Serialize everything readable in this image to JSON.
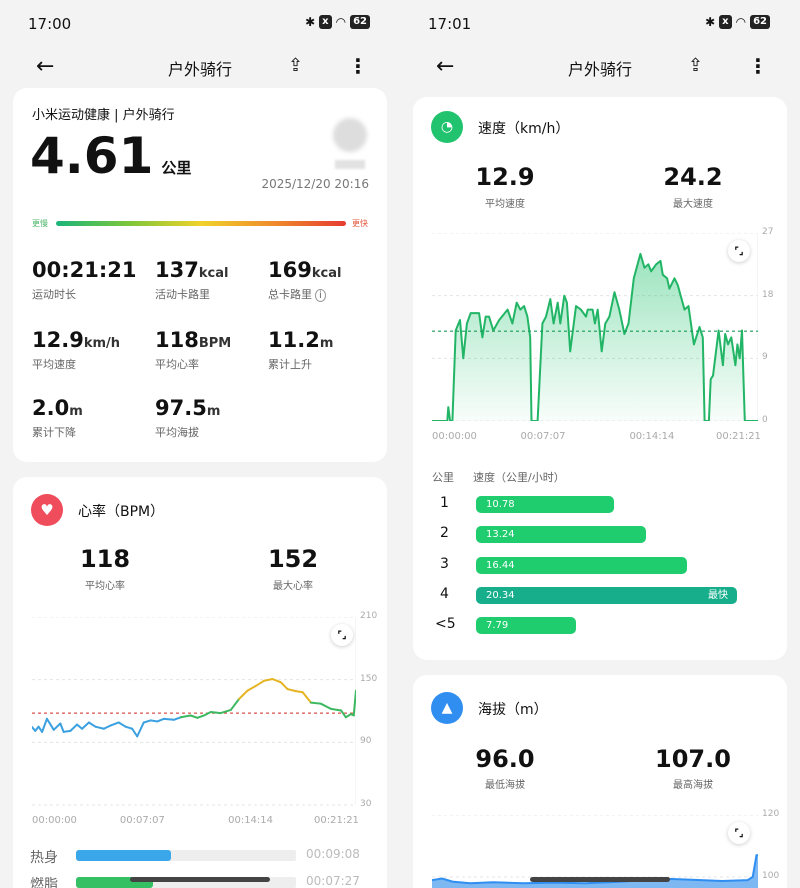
{
  "left": {
    "status": {
      "time": "17:00",
      "battery": "62"
    },
    "nav": {
      "title": "户外骑行"
    },
    "summary": {
      "source": "小米运动健康 | 户外骑行",
      "distance": "4.61",
      "distance_unit": "公里",
      "datetime": "2025/12/20 20:16",
      "scale_slow": "更慢",
      "scale_fast": "更快",
      "stats": [
        {
          "value": "00:21:21",
          "unit": "",
          "label": "运动时长"
        },
        {
          "value": "137",
          "unit": "kcal",
          "label": "活动卡路里"
        },
        {
          "value": "169",
          "unit": "kcal",
          "label": "总卡路里"
        },
        {
          "value": "12.9",
          "unit": "km/h",
          "label": "平均速度"
        },
        {
          "value": "118",
          "unit": "BPM",
          "label": "平均心率"
        },
        {
          "value": "11.2",
          "unit": "m",
          "label": "累计上升"
        },
        {
          "value": "2.0",
          "unit": "m",
          "label": "累计下降"
        },
        {
          "value": "97.5",
          "unit": "m",
          "label": "平均海拔"
        }
      ]
    },
    "heart": {
      "title": "心率（BPM）",
      "avg": "118",
      "avg_label": "平均心率",
      "max": "152",
      "max_label": "最大心率",
      "zones": [
        {
          "label": "热身",
          "time": "00:09:08",
          "fraction": 0.43,
          "color": "#3aa7ea"
        },
        {
          "label": "燃脂",
          "time": "00:07:27",
          "fraction": 0.35,
          "color": "#35c064"
        }
      ]
    }
  },
  "right": {
    "status": {
      "time": "17:01",
      "battery": "62"
    },
    "nav": {
      "title": "户外骑行"
    },
    "speed": {
      "title": "速度（km/h）",
      "avg": "12.9",
      "avg_label": "平均速度",
      "max": "24.2",
      "max_label": "最大速度",
      "table_header_km": "公里",
      "table_header_speed": "速度（公里/小时）",
      "fastest_label": "最快",
      "splits": [
        {
          "km": "1",
          "speed": "10.78",
          "value": 10.78
        },
        {
          "km": "2",
          "speed": "13.24",
          "value": 13.24
        },
        {
          "km": "3",
          "speed": "16.44",
          "value": 16.44
        },
        {
          "km": "4",
          "speed": "20.34",
          "value": 20.34,
          "fastest": true
        },
        {
          "km": "<5",
          "speed": "7.79",
          "value": 7.79
        }
      ]
    },
    "altitude": {
      "title": "海拔（m）",
      "min": "96.0",
      "min_label": "最低海拔",
      "max": "107.0",
      "max_label": "最高海拔"
    }
  },
  "colors": {
    "heart": "#ef4d5c",
    "speed": "#22c36f",
    "altitude": "#2f8ef0",
    "hr_low": "#3aa0e0",
    "hr_mid": "#3cb861",
    "hr_high": "#e6b422"
  },
  "chart_data": [
    {
      "type": "line",
      "name": "heart-rate",
      "ylim": [
        30,
        210
      ],
      "yticks": [
        "210",
        "150",
        "90",
        "30"
      ],
      "xticks": [
        "00:00:00",
        "00:07:07",
        "00:14:14",
        "00:21:21"
      ],
      "avg_line": 118,
      "grid": true,
      "points": [
        [
          "00:00",
          104.6
        ],
        [
          "00:13",
          101
        ],
        [
          "00:26",
          105
        ],
        [
          "00:40",
          100
        ],
        [
          "00:59",
          112.5
        ],
        [
          "01:26",
          102
        ],
        [
          "01:52",
          108
        ],
        [
          "02:05",
          100
        ],
        [
          "02:32",
          101
        ],
        [
          "02:58",
          107
        ],
        [
          "03:18",
          103
        ],
        [
          "03:45",
          109
        ],
        [
          "04:11",
          105
        ],
        [
          "04:44",
          103
        ],
        [
          "05:10",
          106
        ],
        [
          "05:43",
          109
        ],
        [
          "06:10",
          105
        ],
        [
          "06:36",
          103
        ],
        [
          "06:56",
          95.7
        ],
        [
          "07:22",
          109
        ],
        [
          "07:49",
          111
        ],
        [
          "08:15",
          110
        ],
        [
          "08:42",
          112.5
        ],
        [
          "09:21",
          111.6
        ],
        [
          "09:48",
          114
        ],
        [
          "10:27",
          115.7
        ],
        [
          "10:54",
          113.5
        ],
        [
          "11:20",
          115.7
        ],
        [
          "11:47",
          119
        ],
        [
          "12:26",
          118
        ],
        [
          "13:06",
          121
        ],
        [
          "13:39",
          131.6
        ],
        [
          "14:12",
          139.5
        ],
        [
          "14:45",
          144
        ],
        [
          "15:18",
          149
        ],
        [
          "15:51",
          150.6
        ],
        [
          "16:24",
          147.5
        ],
        [
          "16:50",
          141
        ],
        [
          "17:23",
          139
        ],
        [
          "17:50",
          138
        ],
        [
          "18:23",
          128
        ],
        [
          "19:02",
          127
        ],
        [
          "19:42",
          122
        ],
        [
          "20:22",
          120.5
        ],
        [
          "20:41",
          114
        ],
        [
          "21:01",
          117
        ],
        [
          "21:12",
          115.7
        ],
        [
          "21:21",
          139.5
        ]
      ]
    },
    {
      "type": "area",
      "name": "speed",
      "ylim": [
        0,
        27
      ],
      "yticks": [
        "27",
        "18",
        "9",
        "0"
      ],
      "xticks": [
        "00:00:00",
        "00:07:07",
        "00:14:14",
        "00:21:21"
      ],
      "avg_line": 12.9,
      "grid": true,
      "points": [
        [
          "00:00",
          0
        ],
        [
          "01:00",
          0
        ],
        [
          "01:04",
          2
        ],
        [
          "01:11",
          0
        ],
        [
          "01:20",
          0
        ],
        [
          "01:33",
          13
        ],
        [
          "01:50",
          14.5
        ],
        [
          "02:03",
          9
        ],
        [
          "02:17",
          14
        ],
        [
          "02:32",
          15.5
        ],
        [
          "03:05",
          15.5
        ],
        [
          "03:18",
          12
        ],
        [
          "03:31",
          15
        ],
        [
          "03:44",
          15
        ],
        [
          "04:01",
          13
        ],
        [
          "04:24",
          14.5
        ],
        [
          "04:57",
          16
        ],
        [
          "05:16",
          14
        ],
        [
          "05:33",
          17
        ],
        [
          "05:47",
          16
        ],
        [
          "06:02",
          16.5
        ],
        [
          "06:15",
          15
        ],
        [
          "06:26",
          12
        ],
        [
          "06:31",
          0
        ],
        [
          "06:55",
          0
        ],
        [
          "07:14",
          14
        ],
        [
          "07:28",
          15
        ],
        [
          "07:45",
          17.5
        ],
        [
          "07:58",
          14
        ],
        [
          "08:14",
          17
        ],
        [
          "08:24",
          14
        ],
        [
          "08:40",
          18
        ],
        [
          "08:50",
          17
        ],
        [
          "09:03",
          10
        ],
        [
          "09:26",
          16.5
        ],
        [
          "09:45",
          16
        ],
        [
          "10:05",
          15
        ],
        [
          "10:12",
          16
        ],
        [
          "10:31",
          16
        ],
        [
          "10:40",
          14
        ],
        [
          "10:51",
          16
        ],
        [
          "11:07",
          10
        ],
        [
          "11:21",
          14
        ],
        [
          "11:37",
          15
        ],
        [
          "11:57",
          18.5
        ],
        [
          "12:16",
          16
        ],
        [
          "12:36",
          12.5
        ],
        [
          "12:52",
          14
        ],
        [
          "13:13",
          20.5
        ],
        [
          "13:39",
          24
        ],
        [
          "13:55",
          22
        ],
        [
          "14:10",
          22.5
        ],
        [
          "14:21",
          21.5
        ],
        [
          "14:41",
          22.5
        ],
        [
          "14:58",
          23
        ],
        [
          "15:07",
          21
        ],
        [
          "15:24",
          20.5
        ],
        [
          "15:33",
          19
        ],
        [
          "15:53",
          20.5
        ],
        [
          "16:06",
          19.5
        ],
        [
          "16:32",
          16
        ],
        [
          "16:48",
          16.5
        ],
        [
          "17:09",
          11
        ],
        [
          "17:31",
          13.5
        ],
        [
          "17:44",
          12
        ],
        [
          "17:51",
          0
        ],
        [
          "18:08",
          0
        ],
        [
          "18:15",
          6
        ],
        [
          "18:24",
          6.5
        ],
        [
          "18:46",
          13
        ],
        [
          "19:03",
          8
        ],
        [
          "19:12",
          12.5
        ],
        [
          "19:23",
          11
        ],
        [
          "19:36",
          12
        ],
        [
          "19:52",
          8
        ],
        [
          "20:00",
          11
        ],
        [
          "20:09",
          9
        ],
        [
          "20:18",
          13
        ],
        [
          "20:29",
          0
        ],
        [
          "21:21",
          0
        ]
      ]
    },
    {
      "type": "area",
      "name": "altitude",
      "yticks": [
        "120",
        "100"
      ],
      "ylim": [
        90,
        120
      ],
      "points": [
        [
          "00:00",
          99
        ],
        [
          "00:40",
          99.5
        ],
        [
          "01:20",
          98.5
        ],
        [
          "02:30",
          98
        ],
        [
          "04:00",
          98.3
        ],
        [
          "06:00",
          98
        ],
        [
          "08:00",
          98.2
        ],
        [
          "10:00",
          98
        ],
        [
          "12:00",
          98.4
        ],
        [
          "14:00",
          99
        ],
        [
          "15:30",
          99.4
        ],
        [
          "17:00",
          99.1
        ],
        [
          "19:00",
          98.7
        ],
        [
          "20:40",
          99
        ],
        [
          "21:00",
          100
        ],
        [
          "21:15",
          107
        ],
        [
          "21:21",
          107
        ]
      ]
    }
  ]
}
